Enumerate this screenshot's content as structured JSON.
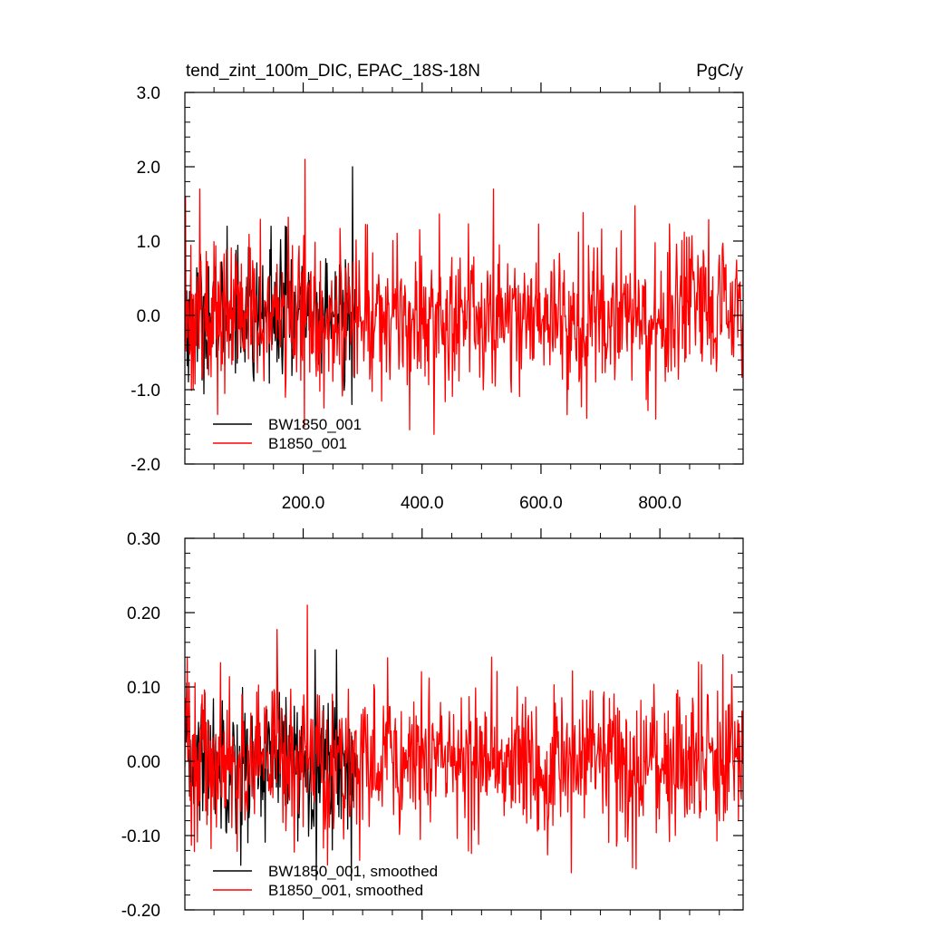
{
  "header": {
    "title": "tend_zint_100m_DIC, EPAC_18S-18N",
    "units": "PgC/y"
  },
  "colors": {
    "BW1850_001": "#000000",
    "B1850_001": "#ff0000",
    "axis": "#000000",
    "background": "#ffffff"
  },
  "chart_data": [
    {
      "type": "line",
      "title": "tend_zint_100m_DIC, EPAC_18S-18N",
      "units_label": "PgC/y",
      "xlim": [
        1,
        940
      ],
      "ylim": [
        -2.0,
        3.0
      ],
      "x_ticks": [
        200,
        400,
        600,
        800
      ],
      "x_tick_labels": [
        "200.0",
        "400.0",
        "600.0",
        "800.0"
      ],
      "y_ticks": [
        -2.0,
        -1.0,
        0.0,
        1.0,
        2.0,
        3.0
      ],
      "y_tick_labels": [
        "-2.0",
        "-1.0",
        "0.0",
        "1.0",
        "2.0",
        "3.0"
      ],
      "grid": false,
      "legend_position": "bottom-left",
      "series": [
        {
          "name": "BW1850_001",
          "color": "#000000",
          "x_start": 1,
          "x_end": 288,
          "n_points": 288,
          "mean": 0.0,
          "std": 0.42,
          "min": -1.2,
          "max": 2.0,
          "peaks": [
            [
              283,
              2.0
            ],
            [
              282,
              -1.2
            ],
            [
              72,
              1.2
            ],
            [
              146,
              1.2
            ],
            [
              170,
              1.2
            ]
          ]
        },
        {
          "name": "B1850_001",
          "color": "#ff0000",
          "x_start": 1,
          "x_end": 940,
          "n_points": 940,
          "mean": 0.0,
          "std": 0.5,
          "min": -1.6,
          "max": 2.1,
          "peaks": [
            [
              203,
              2.1
            ],
            [
              420,
              -1.6
            ],
            [
              202,
              -1.5
            ],
            [
              26,
              1.7
            ],
            [
              520,
              1.7
            ],
            [
              2,
              1.6
            ],
            [
              780,
              -1.28
            ]
          ]
        }
      ]
    },
    {
      "type": "line",
      "title": "",
      "xlim": [
        1,
        940
      ],
      "ylim": [
        -0.2,
        0.3
      ],
      "x_ticks": [
        200,
        400,
        600,
        800
      ],
      "x_tick_labels": [],
      "y_ticks": [
        -0.2,
        -0.1,
        0.0,
        0.1,
        0.2,
        0.3
      ],
      "y_tick_labels": [
        "-0.20",
        "-0.10",
        "0.00",
        "0.10",
        "0.20",
        "0.30"
      ],
      "grid": false,
      "legend_position": "bottom-left",
      "series": [
        {
          "name": "BW1850_001, smoothed",
          "color": "#000000",
          "x_start": 1,
          "x_end": 288,
          "n_points": 288,
          "mean": 0.0,
          "std": 0.045,
          "min": -0.16,
          "max": 0.15,
          "peaks": [
            [
              220,
              0.15
            ],
            [
              256,
              0.15
            ],
            [
              281,
              -0.16
            ],
            [
              95,
              -0.14
            ]
          ]
        },
        {
          "name": "B1850_001, smoothed",
          "color": "#ff0000",
          "x_start": 1,
          "x_end": 940,
          "n_points": 940,
          "mean": 0.0,
          "std": 0.05,
          "min": -0.15,
          "max": 0.21,
          "peaks": [
            [
              207,
              0.21
            ],
            [
              5,
              0.14
            ],
            [
              517,
              0.14
            ],
            [
              651,
              -0.15
            ],
            [
              760,
              -0.145
            ],
            [
              870,
              0.13
            ]
          ]
        }
      ]
    }
  ]
}
